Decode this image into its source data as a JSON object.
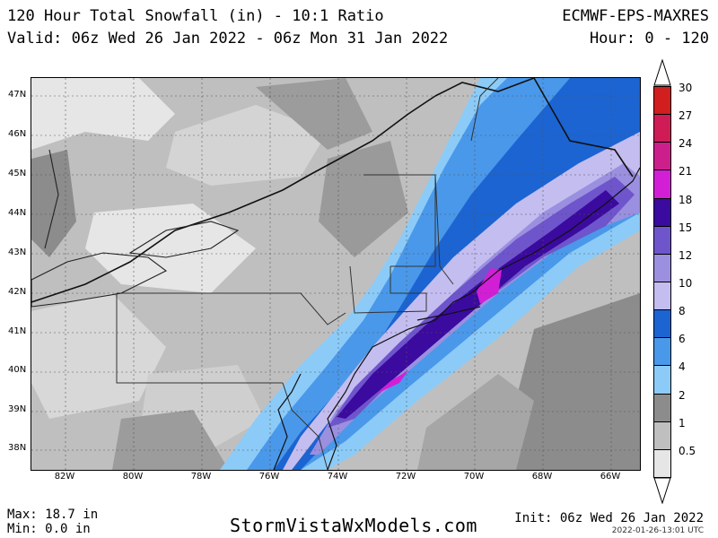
{
  "header": {
    "title": "120 Hour Total Snowfall (in) - 10:1 Ratio",
    "valid": "Valid: 06z Wed 26 Jan 2022 - 06z Mon 31 Jan 2022",
    "model": "ECMWF-EPS-MAXRES",
    "hour": "Hour: 0 - 120"
  },
  "map": {
    "lat_labels": [
      "47N",
      "46N",
      "45N",
      "44N",
      "43N",
      "42N",
      "41N",
      "40N",
      "39N",
      "38N"
    ],
    "lon_labels": [
      "82W",
      "80W",
      "78W",
      "76W",
      "74W",
      "72W",
      "70W",
      "68W",
      "66W"
    ]
  },
  "legend": {
    "levels": [
      "30",
      "27",
      "24",
      "21",
      "18",
      "15",
      "12",
      "10",
      "8",
      "6",
      "4",
      "2",
      "1",
      "0.5"
    ],
    "colors": [
      "#d11e1e",
      "#cf1b56",
      "#cc1f8c",
      "#d21fd6",
      "#3b0a9e",
      "#6e55cc",
      "#9b8fe0",
      "#c4bdf0",
      "#1b64d2",
      "#4a98ea",
      "#8ccbf7",
      "#8c8c8c",
      "#bfbfbf",
      "#e6e6e6"
    ]
  },
  "footer": {
    "max": "Max: 18.7 in",
    "min": "Min: 0.0 in",
    "site": "StormVistaWxModels.com",
    "init": "Init: 06z Wed 26 Jan 2022",
    "stamp": "2022-01-26-13:01 UTC"
  }
}
